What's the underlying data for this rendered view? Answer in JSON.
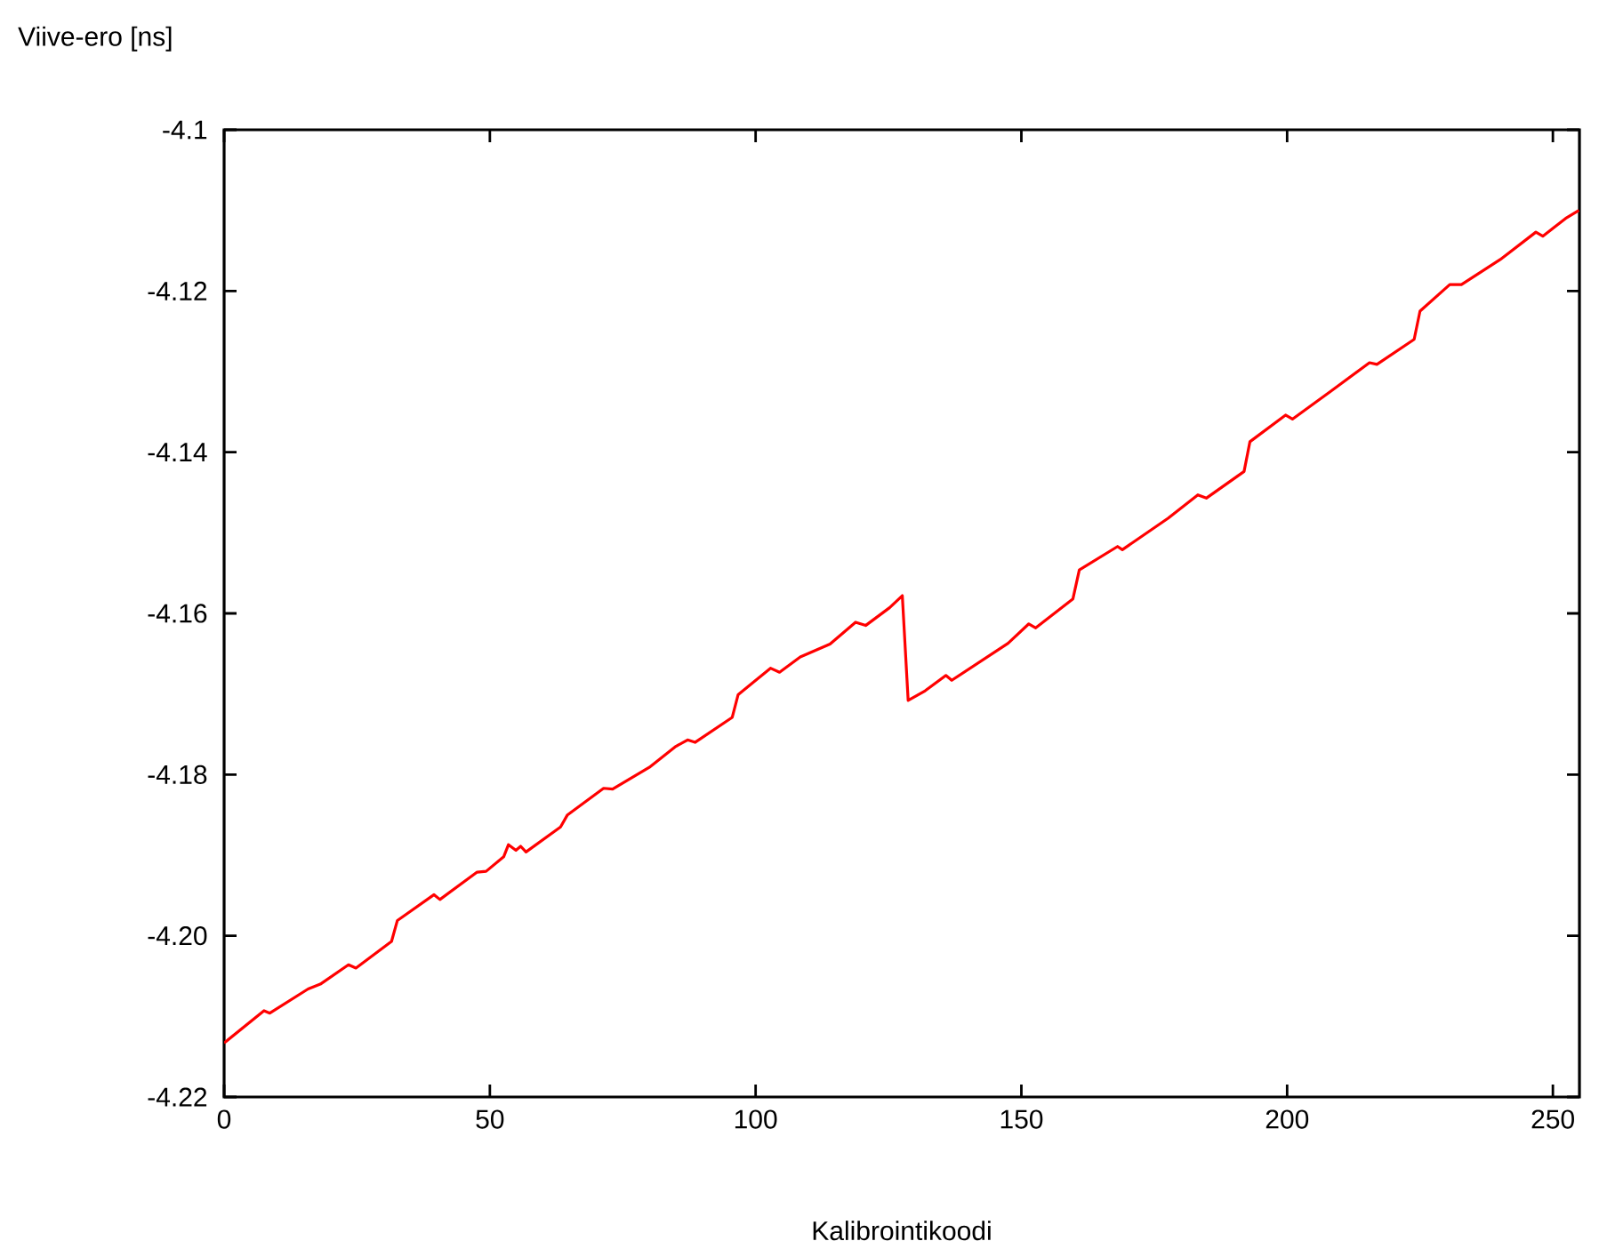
{
  "chart_data": {
    "type": "line",
    "xlabel": "Kalibrointikoodi",
    "ylabel": "Viive-ero [ns]",
    "xlim": [
      0,
      255
    ],
    "ylim": [
      -4.22,
      -4.1
    ],
    "xticks": [
      0,
      50,
      100,
      150,
      200,
      250
    ],
    "yticks": [
      -4.22,
      {
        "value": -4.2,
        "label": "-4.20"
      },
      -4.18,
      -4.16,
      -4.14,
      -4.12,
      -4.1
    ],
    "grid": false,
    "marker": "none",
    "line_style": "solid",
    "series": [
      {
        "color": "#ff0000",
        "x": [
          0,
          7.5,
          8.6,
          15.8,
          18.1,
          23.4,
          24.8,
          31.5,
          32.6,
          39.5,
          40.6,
          47.6,
          49.3,
          52.6,
          53.5,
          54.9,
          55.8,
          56.8,
          63.3,
          64.6,
          71.4,
          73.1,
          80,
          85,
          87.2,
          88.6,
          95.6,
          96.7,
          102.8,
          104.5,
          108.4,
          114,
          118.8,
          120.7,
          125.2,
          127.6,
          128.7,
          131.9,
          135.8,
          136.9,
          147.5,
          151.4,
          152.7,
          159.7,
          160.9,
          168.1,
          169,
          177.6,
          183.2,
          184.8,
          191.9,
          193,
          199.7,
          201,
          208.3,
          215.5,
          216.9,
          223.9,
          225,
          230.6,
          232.8,
          240.1,
          246.8,
          248.1,
          252.4,
          254.9
        ],
        "values": [
          -4.2133,
          -4.2093,
          -4.2096,
          -4.2066,
          -4.206,
          -4.2036,
          -4.204,
          -4.2007,
          -4.1981,
          -4.1949,
          -4.1955,
          -4.1921,
          -4.192,
          -4.1902,
          -4.1887,
          -4.1894,
          -4.1889,
          -4.1896,
          -4.1865,
          -4.185,
          -4.1817,
          -4.1818,
          -4.1791,
          -4.1765,
          -4.1757,
          -4.176,
          -4.1729,
          -4.1701,
          -4.1668,
          -4.1673,
          -4.1654,
          -4.1638,
          -4.1611,
          -4.1615,
          -4.1593,
          -4.1578,
          -4.1708,
          -4.1696,
          -4.1677,
          -4.1683,
          -4.1637,
          -4.1613,
          -4.1618,
          -4.1582,
          -4.1546,
          -4.1517,
          -4.1521,
          -4.1482,
          -4.1453,
          -4.1457,
          -4.1424,
          -4.1387,
          -4.1354,
          -4.1359,
          -4.1324,
          -4.1289,
          -4.1291,
          -4.126,
          -4.1225,
          -4.1192,
          -4.1192,
          -4.1161,
          -4.1127,
          -4.1132,
          -4.111,
          -4.11
        ]
      }
    ]
  }
}
